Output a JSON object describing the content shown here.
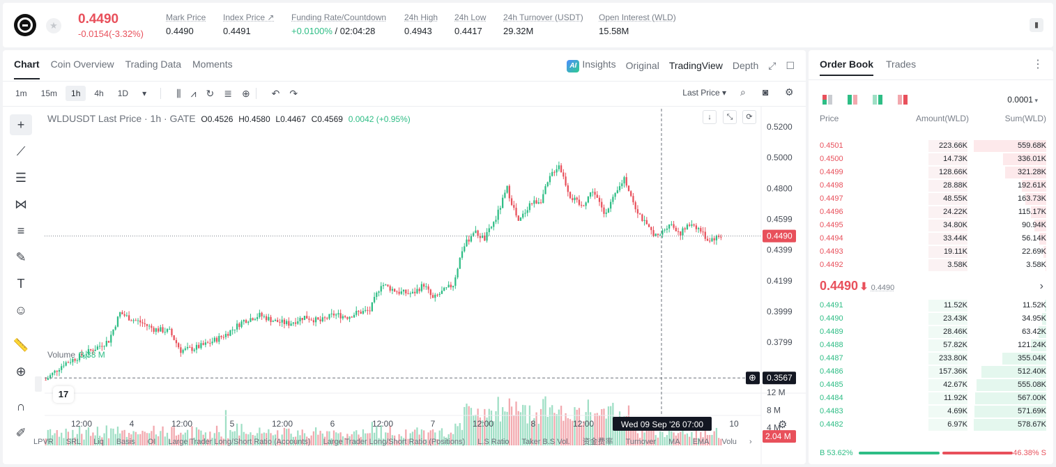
{
  "header": {
    "price": "0.4490",
    "change": "-0.0154(-3.32%)",
    "stats": [
      {
        "label": "Mark Price",
        "value": "0.4490"
      },
      {
        "label": "Index Price ↗",
        "value": "0.4491"
      },
      {
        "label": "Funding Rate/Countdown",
        "value_green": "+0.0100%",
        "value": " / 02:04:28"
      },
      {
        "label": "24h High",
        "value": "0.4943"
      },
      {
        "label": "24h Low",
        "value": "0.4417"
      },
      {
        "label": "24h Turnover (USDT)",
        "value": "29.32M"
      },
      {
        "label": "Open Interest (WLD)",
        "value": "15.58M"
      }
    ]
  },
  "chart_tabs": [
    "Chart",
    "Coin Overview",
    "Trading Data",
    "Moments"
  ],
  "chart_views": {
    "insights": "Insights",
    "original": "Original",
    "tradingview": "TradingView",
    "depth": "Depth"
  },
  "intervals": [
    "1m",
    "15m",
    "1h",
    "4h",
    "1D"
  ],
  "price_type": "Last Price",
  "legend": {
    "title": "WLDUSDT Last Price · 1h · GATE",
    "o": "O0.4526",
    "h": "H0.4580",
    "l": "L0.4467",
    "c": "C0.4569",
    "chg": "0.0042 (+0.95%)"
  },
  "volume_label": {
    "label": "Volume",
    "value": "3.38 M"
  },
  "indicators": [
    "LPVR",
    "SRL",
    "Liq",
    "Basis",
    "OI",
    "Large Trader Long/Short Ratio (Accounts)",
    "Large Trader Long/Short Ratio (Positions)",
    "L.S Ratio",
    "Taker B.S Vol.",
    "资金费率",
    "Turnover",
    "MA",
    "EMA",
    "Volu"
  ],
  "chart_data": {
    "type": "candlestick",
    "y_ticks": [
      "0.5200",
      "0.5000",
      "0.4800",
      "0.4599",
      "0.4399",
      "0.4199",
      "0.3999",
      "0.3799"
    ],
    "volume_ticks": [
      "12 M",
      "8 M",
      "4 M"
    ],
    "x_ticks": [
      "12:00",
      "4",
      "12:00",
      "5",
      "12:00",
      "6",
      "12:00",
      "7",
      "12:00",
      "8",
      "12:00",
      "10"
    ],
    "last_price_label": "0.4490",
    "crosshair_price_label": "0.3567",
    "crosshair_time_label": "Wed 09 Sep '26   07:00",
    "volume_marker_label": "2.04 M",
    "colors": {
      "up": "#2ebd85",
      "down": "#e8505b",
      "up_vol": "#9fdfc5",
      "down_vol": "#f2a8ae"
    },
    "anchors": [
      [
        0,
        0.3555
      ],
      [
        8,
        0.366
      ],
      [
        14,
        0.37
      ],
      [
        22,
        0.376
      ],
      [
        28,
        0.381
      ],
      [
        33,
        0.399
      ],
      [
        38,
        0.395
      ],
      [
        42,
        0.393
      ],
      [
        48,
        0.3885
      ],
      [
        55,
        0.387
      ],
      [
        60,
        0.3745
      ],
      [
        66,
        0.376
      ],
      [
        72,
        0.379
      ],
      [
        80,
        0.385
      ],
      [
        88,
        0.394
      ],
      [
        95,
        0.3975
      ],
      [
        102,
        0.3935
      ],
      [
        108,
        0.392
      ],
      [
        115,
        0.3965
      ],
      [
        122,
        0.3935
      ],
      [
        128,
        0.398
      ],
      [
        134,
        0.3965
      ],
      [
        138,
        0.399
      ],
      [
        144,
        0.4005
      ],
      [
        149,
        0.418
      ],
      [
        153,
        0.415
      ],
      [
        157,
        0.4125
      ],
      [
        163,
        0.4115
      ],
      [
        168,
        0.4175
      ],
      [
        172,
        0.408
      ],
      [
        176,
        0.4125
      ],
      [
        181,
        0.4175
      ],
      [
        185,
        0.44
      ],
      [
        190,
        0.452
      ],
      [
        195,
        0.447
      ],
      [
        200,
        0.4605
      ],
      [
        205,
        0.48
      ],
      [
        210,
        0.4575
      ],
      [
        215,
        0.47
      ],
      [
        220,
        0.4725
      ],
      [
        225,
        0.49
      ],
      [
        228,
        0.4955
      ],
      [
        233,
        0.475
      ],
      [
        238,
        0.468
      ],
      [
        243,
        0.479
      ],
      [
        248,
        0.464
      ],
      [
        253,
        0.475
      ],
      [
        257,
        0.487
      ],
      [
        262,
        0.468
      ],
      [
        267,
        0.455
      ],
      [
        272,
        0.448
      ],
      [
        277,
        0.4575
      ],
      [
        282,
        0.451
      ],
      [
        287,
        0.4575
      ],
      [
        291,
        0.4525
      ],
      [
        294,
        0.4465
      ],
      [
        300,
        0.449
      ]
    ]
  },
  "orderbook": {
    "tabs": [
      "Order Book",
      "Trades"
    ],
    "precision": "0.0001",
    "headers": {
      "price": "Price",
      "amount": "Amount(WLD)",
      "sum": "Sum(WLD)"
    },
    "asks": [
      {
        "price": "0.4501",
        "amount": "223.66K",
        "sum": "559.68K",
        "amt_frac": 0.38,
        "sum_frac": 1.0
      },
      {
        "price": "0.4500",
        "amount": "14.73K",
        "sum": "336.01K",
        "amt_frac": 0.03,
        "sum_frac": 0.6
      },
      {
        "price": "0.4499",
        "amount": "128.66K",
        "sum": "321.28K",
        "amt_frac": 0.22,
        "sum_frac": 0.57
      },
      {
        "price": "0.4498",
        "amount": "28.88K",
        "sum": "192.61K",
        "amt_frac": 0.05,
        "sum_frac": 0.34
      },
      {
        "price": "0.4497",
        "amount": "48.55K",
        "sum": "163.73K",
        "amt_frac": 0.08,
        "sum_frac": 0.29
      },
      {
        "price": "0.4496",
        "amount": "24.22K",
        "sum": "115.17K",
        "amt_frac": 0.04,
        "sum_frac": 0.21
      },
      {
        "price": "0.4495",
        "amount": "34.80K",
        "sum": "90.94K",
        "amt_frac": 0.06,
        "sum_frac": 0.16
      },
      {
        "price": "0.4494",
        "amount": "33.44K",
        "sum": "56.14K",
        "amt_frac": 0.06,
        "sum_frac": 0.1
      },
      {
        "price": "0.4493",
        "amount": "19.11K",
        "sum": "22.69K",
        "amt_frac": 0.03,
        "sum_frac": 0.04
      },
      {
        "price": "0.4492",
        "amount": "3.58K",
        "sum": "3.58K",
        "amt_frac": 0.01,
        "sum_frac": 0.01
      }
    ],
    "mid": {
      "price": "0.4490",
      "arrow": "🠗",
      "mark": "0.4490"
    },
    "bids": [
      {
        "price": "0.4491",
        "amount": "11.52K",
        "sum": "11.52K",
        "amt_frac": 0.02,
        "sum_frac": 0.02
      },
      {
        "price": "0.4490",
        "amount": "23.43K",
        "sum": "34.95K",
        "amt_frac": 0.04,
        "sum_frac": 0.06
      },
      {
        "price": "0.4489",
        "amount": "28.46K",
        "sum": "63.42K",
        "amt_frac": 0.05,
        "sum_frac": 0.11
      },
      {
        "price": "0.4488",
        "amount": "57.82K",
        "sum": "121.24K",
        "amt_frac": 0.1,
        "sum_frac": 0.21
      },
      {
        "price": "0.4487",
        "amount": "233.80K",
        "sum": "355.04K",
        "amt_frac": 0.4,
        "sum_frac": 0.61
      },
      {
        "price": "0.4486",
        "amount": "157.36K",
        "sum": "512.40K",
        "amt_frac": 0.27,
        "sum_frac": 0.89
      },
      {
        "price": "0.4485",
        "amount": "42.67K",
        "sum": "555.08K",
        "amt_frac": 0.07,
        "sum_frac": 0.96
      },
      {
        "price": "0.4484",
        "amount": "11.92K",
        "sum": "567.00K",
        "amt_frac": 0.02,
        "sum_frac": 0.98
      },
      {
        "price": "0.4483",
        "amount": "4.69K",
        "sum": "571.69K",
        "amt_frac": 0.01,
        "sum_frac": 0.99
      },
      {
        "price": "0.4482",
        "amount": "6.97K",
        "sum": "578.67K",
        "amt_frac": 0.01,
        "sum_frac": 1.0
      }
    ],
    "buy_label": "B 53.62%",
    "sell_label": "46.38% S",
    "buy_frac": 0.5362
  }
}
